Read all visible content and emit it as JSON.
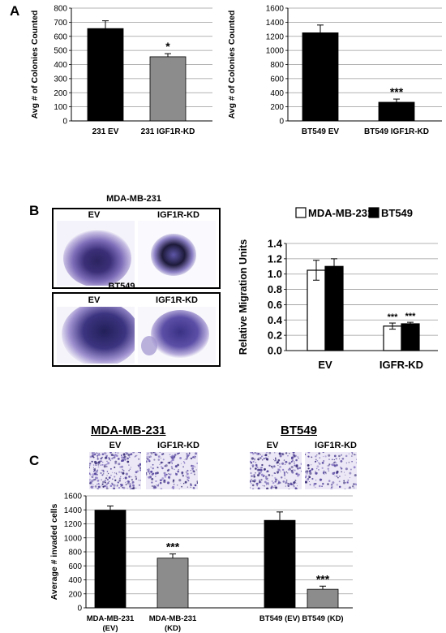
{
  "panels": {
    "a": {
      "letter": "A"
    },
    "b": {
      "letter": "B",
      "image_title_1": "MDA-MB-231",
      "image_title_2": "BT549",
      "ev_label": "EV",
      "kd_label": "IGF1R-KD"
    },
    "c": {
      "letter": "C",
      "heading_1": "MDA-MB-231",
      "heading_2": "BT549",
      "ev_label": "EV",
      "kd_label": "IGF1R-KD"
    }
  },
  "chart_data": [
    {
      "id": "a1",
      "type": "bar",
      "categories": [
        "231 EV",
        "231 IGF1R-KD"
      ],
      "values": [
        655,
        455
      ],
      "errors": [
        55,
        22
      ],
      "colors": [
        "#000000",
        "#8c8c8c"
      ],
      "significance": [
        "",
        "*"
      ],
      "ylabel": "Avg # of Colonies Counted",
      "ylim": [
        0,
        800
      ],
      "yticks": [
        "0",
        "100",
        "200",
        "300",
        "400",
        "500",
        "600",
        "700",
        "800"
      ],
      "grid": true
    },
    {
      "id": "a2",
      "type": "bar",
      "categories": [
        "BT549 EV",
        "BT549 IGF1R-KD"
      ],
      "values": [
        1250,
        265
      ],
      "errors": [
        110,
        45
      ],
      "colors": [
        "#000000",
        "#000000"
      ],
      "significance": [
        "",
        "***"
      ],
      "ylabel": "Avg # of Colonies Counted",
      "ylim": [
        0,
        1600
      ],
      "yticks": [
        "0",
        "200",
        "400",
        "600",
        "800",
        "1000",
        "1200",
        "1400",
        "1600"
      ],
      "grid": true
    },
    {
      "id": "b",
      "type": "bar",
      "categories": [
        "EV",
        "IGFR-KD"
      ],
      "series": [
        {
          "name": "MDA-MB-231",
          "values": [
            1.05,
            0.32
          ],
          "errors": [
            0.13,
            0.04
          ],
          "color": "#ffffff"
        },
        {
          "name": "BT549",
          "values": [
            1.1,
            0.35
          ],
          "errors": [
            0.1,
            0.02
          ],
          "color": "#000000"
        }
      ],
      "significance": [
        [
          "",
          ""
        ],
        [
          "***",
          "***"
        ]
      ],
      "ylabel": "Relative  Migration Units",
      "ylim": [
        0,
        1.4
      ],
      "yticks": [
        "0.0",
        "0.2",
        "0.4",
        "0.6",
        "0.8",
        "1.0",
        "1.2",
        "1.4"
      ],
      "legend": "top",
      "grid": true
    },
    {
      "id": "c",
      "type": "bar",
      "categories": [
        [
          "MDA-MB-231",
          "(EV)"
        ],
        [
          "MDA-MB-231",
          "(KD)"
        ],
        [
          "BT549 (EV)"
        ],
        [
          "BT549 (KD)"
        ]
      ],
      "values": [
        1395,
        710,
        1250,
        265
      ],
      "errors": [
        60,
        60,
        120,
        45
      ],
      "colors": [
        "#000000",
        "#8c8c8c",
        "#000000",
        "#8c8c8c"
      ],
      "significance": [
        "",
        "***",
        "",
        "***"
      ],
      "ylabel": "Average # invaded cells",
      "ylim": [
        0,
        1600
      ],
      "yticks": [
        "0",
        "200",
        "400",
        "600",
        "800",
        "1000",
        "1200",
        "1400",
        "1600"
      ],
      "grid": true
    }
  ]
}
